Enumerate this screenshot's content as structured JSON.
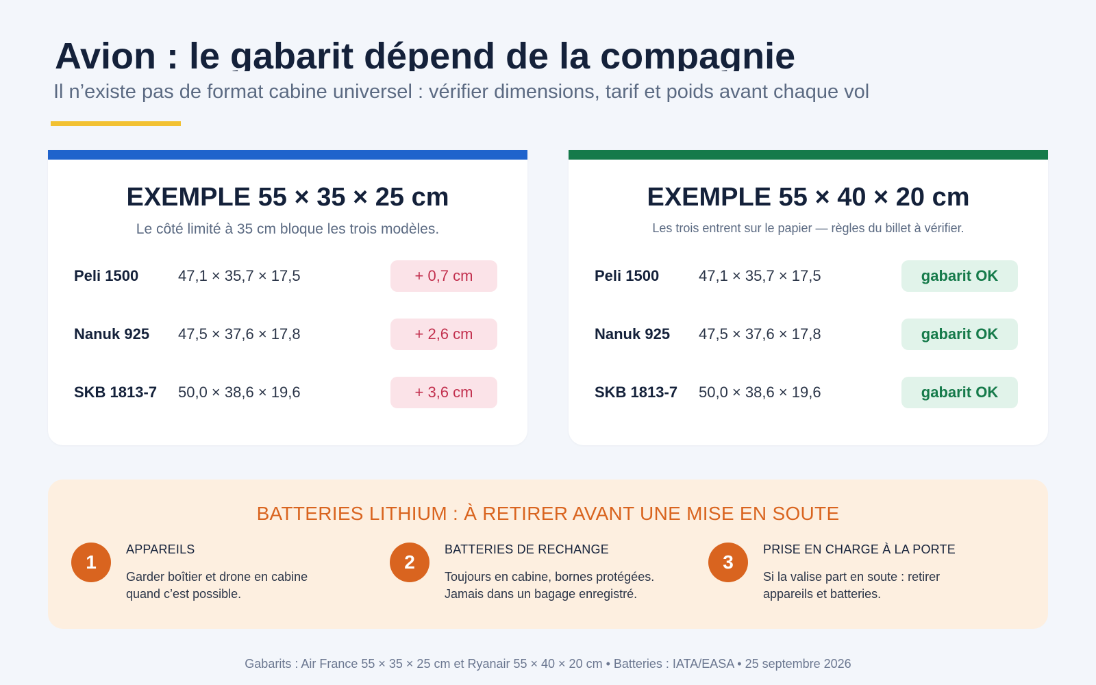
{
  "header": {
    "title": "Avion : le gabarit dépend de la compagnie",
    "subtitle": "Il n’existe pas de format cabine universel : vérifier dimensions, tarif et poids avant chaque vol"
  },
  "cards": [
    {
      "title": "EXEMPLE 55 × 35 × 25 cm",
      "subtitle": "Le côté limité à 35 cm bloque les trois modèles.",
      "accent": "#1f63cc",
      "rows": [
        {
          "name": "Peli 1500",
          "dims": "47,1 × 35,7 × 17,5",
          "status": "+ 0,7 cm"
        },
        {
          "name": "Nanuk 925",
          "dims": "47,5 × 37,6 × 17,8",
          "status": "+ 2,6 cm"
        },
        {
          "name": "SKB 1813-7",
          "dims": "50,0 × 38,6 × 19,6",
          "status": "+ 3,6 cm"
        }
      ]
    },
    {
      "title": "EXEMPLE 55 × 40 × 20 cm",
      "subtitle": "Les trois entrent sur le papier — règles du billet à vérifier.",
      "accent": "#157a4a",
      "rows": [
        {
          "name": "Peli 1500",
          "dims": "47,1 × 35,7 × 17,5",
          "status": "gabarit OK"
        },
        {
          "name": "Nanuk 925",
          "dims": "47,5 × 37,6 × 17,8",
          "status": "gabarit OK"
        },
        {
          "name": "SKB 1813-7",
          "dims": "50,0 × 38,6 × 19,6",
          "status": "gabarit OK"
        }
      ]
    }
  ],
  "batteries": {
    "title": "BATTERIES LITHIUM : À RETIRER AVANT UNE MISE EN SOUTE",
    "steps": [
      {
        "num": "1",
        "title": "APPAREILS",
        "line1": "Garder boîtier et drone en cabine",
        "line2": "quand c’est possible."
      },
      {
        "num": "2",
        "title": "BATTERIES DE RECHANGE",
        "line1": "Toujours en cabine, bornes protégées.",
        "line2": "Jamais dans un bagage enregistré."
      },
      {
        "num": "3",
        "title": "PRISE EN CHARGE À LA PORTE",
        "line1": "Si la valise part en soute : retirer",
        "line2": "appareils et batteries."
      }
    ]
  },
  "footer": "Gabarits : Air France 55 × 35 × 25 cm et Ryanair 55 × 40 × 20 cm • Batteries : IATA/EASA • 25 septembre 2026",
  "colors": {
    "background": "#f3f6fb",
    "title": "#14213a",
    "accent_yellow": "#f2c132",
    "bad": "#c2304e",
    "ok": "#157a4a",
    "orange": "#d9641f"
  }
}
